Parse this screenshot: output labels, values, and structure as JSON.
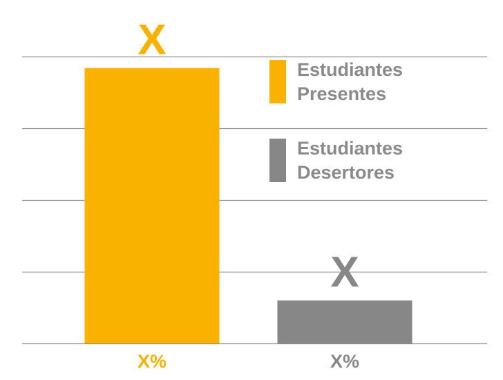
{
  "chart_data": {
    "type": "bar",
    "categories": [
      "Estudiantes Presentes",
      "Estudiantes Desertores"
    ],
    "values": [
      96,
      15
    ],
    "ylim": [
      0,
      100
    ],
    "grid": true,
    "legend_placement": "top-right",
    "top_labels": [
      "X",
      "X"
    ],
    "bottom_labels": [
      "X%",
      "X%"
    ],
    "colors": [
      "#FAB200",
      "#878787"
    ],
    "gridline_color": "#8a8a8a",
    "label_text_color": "#8a8a8a"
  },
  "legend": [
    {
      "line1": "Estudiantes",
      "line2": "Presentes",
      "color": "#FAB200"
    },
    {
      "line1": "Estudiantes",
      "line2": "Desertores",
      "color": "#878787"
    }
  ]
}
